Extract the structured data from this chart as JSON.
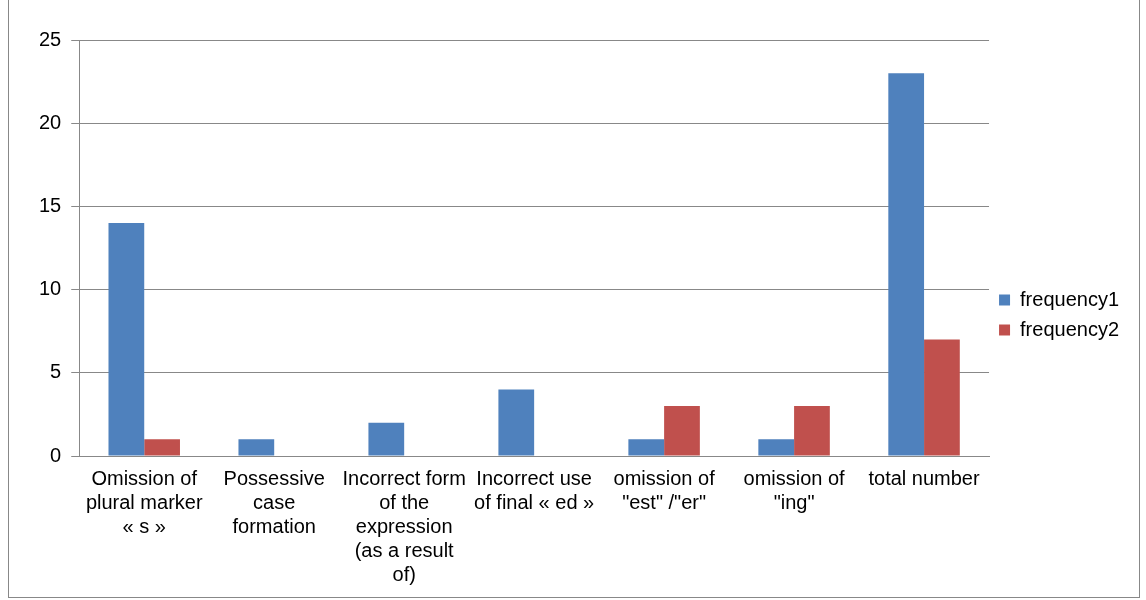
{
  "chart_data": {
    "type": "bar",
    "categories": [
      "Omission of plural marker « s »",
      "Possessive case formation",
      "Incorrect form of the expression (as a result of)",
      "Incorrect use of final « ed »",
      "omission of \"est\" /\"er\"",
      "omission of \"ing\"",
      "total number"
    ],
    "series": [
      {
        "name": "frequency1",
        "color": "#4f81bd",
        "values": [
          14,
          1,
          2,
          4,
          1,
          1,
          23
        ]
      },
      {
        "name": "frequency2",
        "color": "#c0504d",
        "values": [
          1,
          0,
          0,
          0,
          3,
          3,
          7
        ]
      }
    ],
    "ylim": [
      0,
      25
    ],
    "yticks": [
      0,
      5,
      10,
      15,
      20,
      25
    ],
    "grid": "y",
    "legend": "right"
  }
}
